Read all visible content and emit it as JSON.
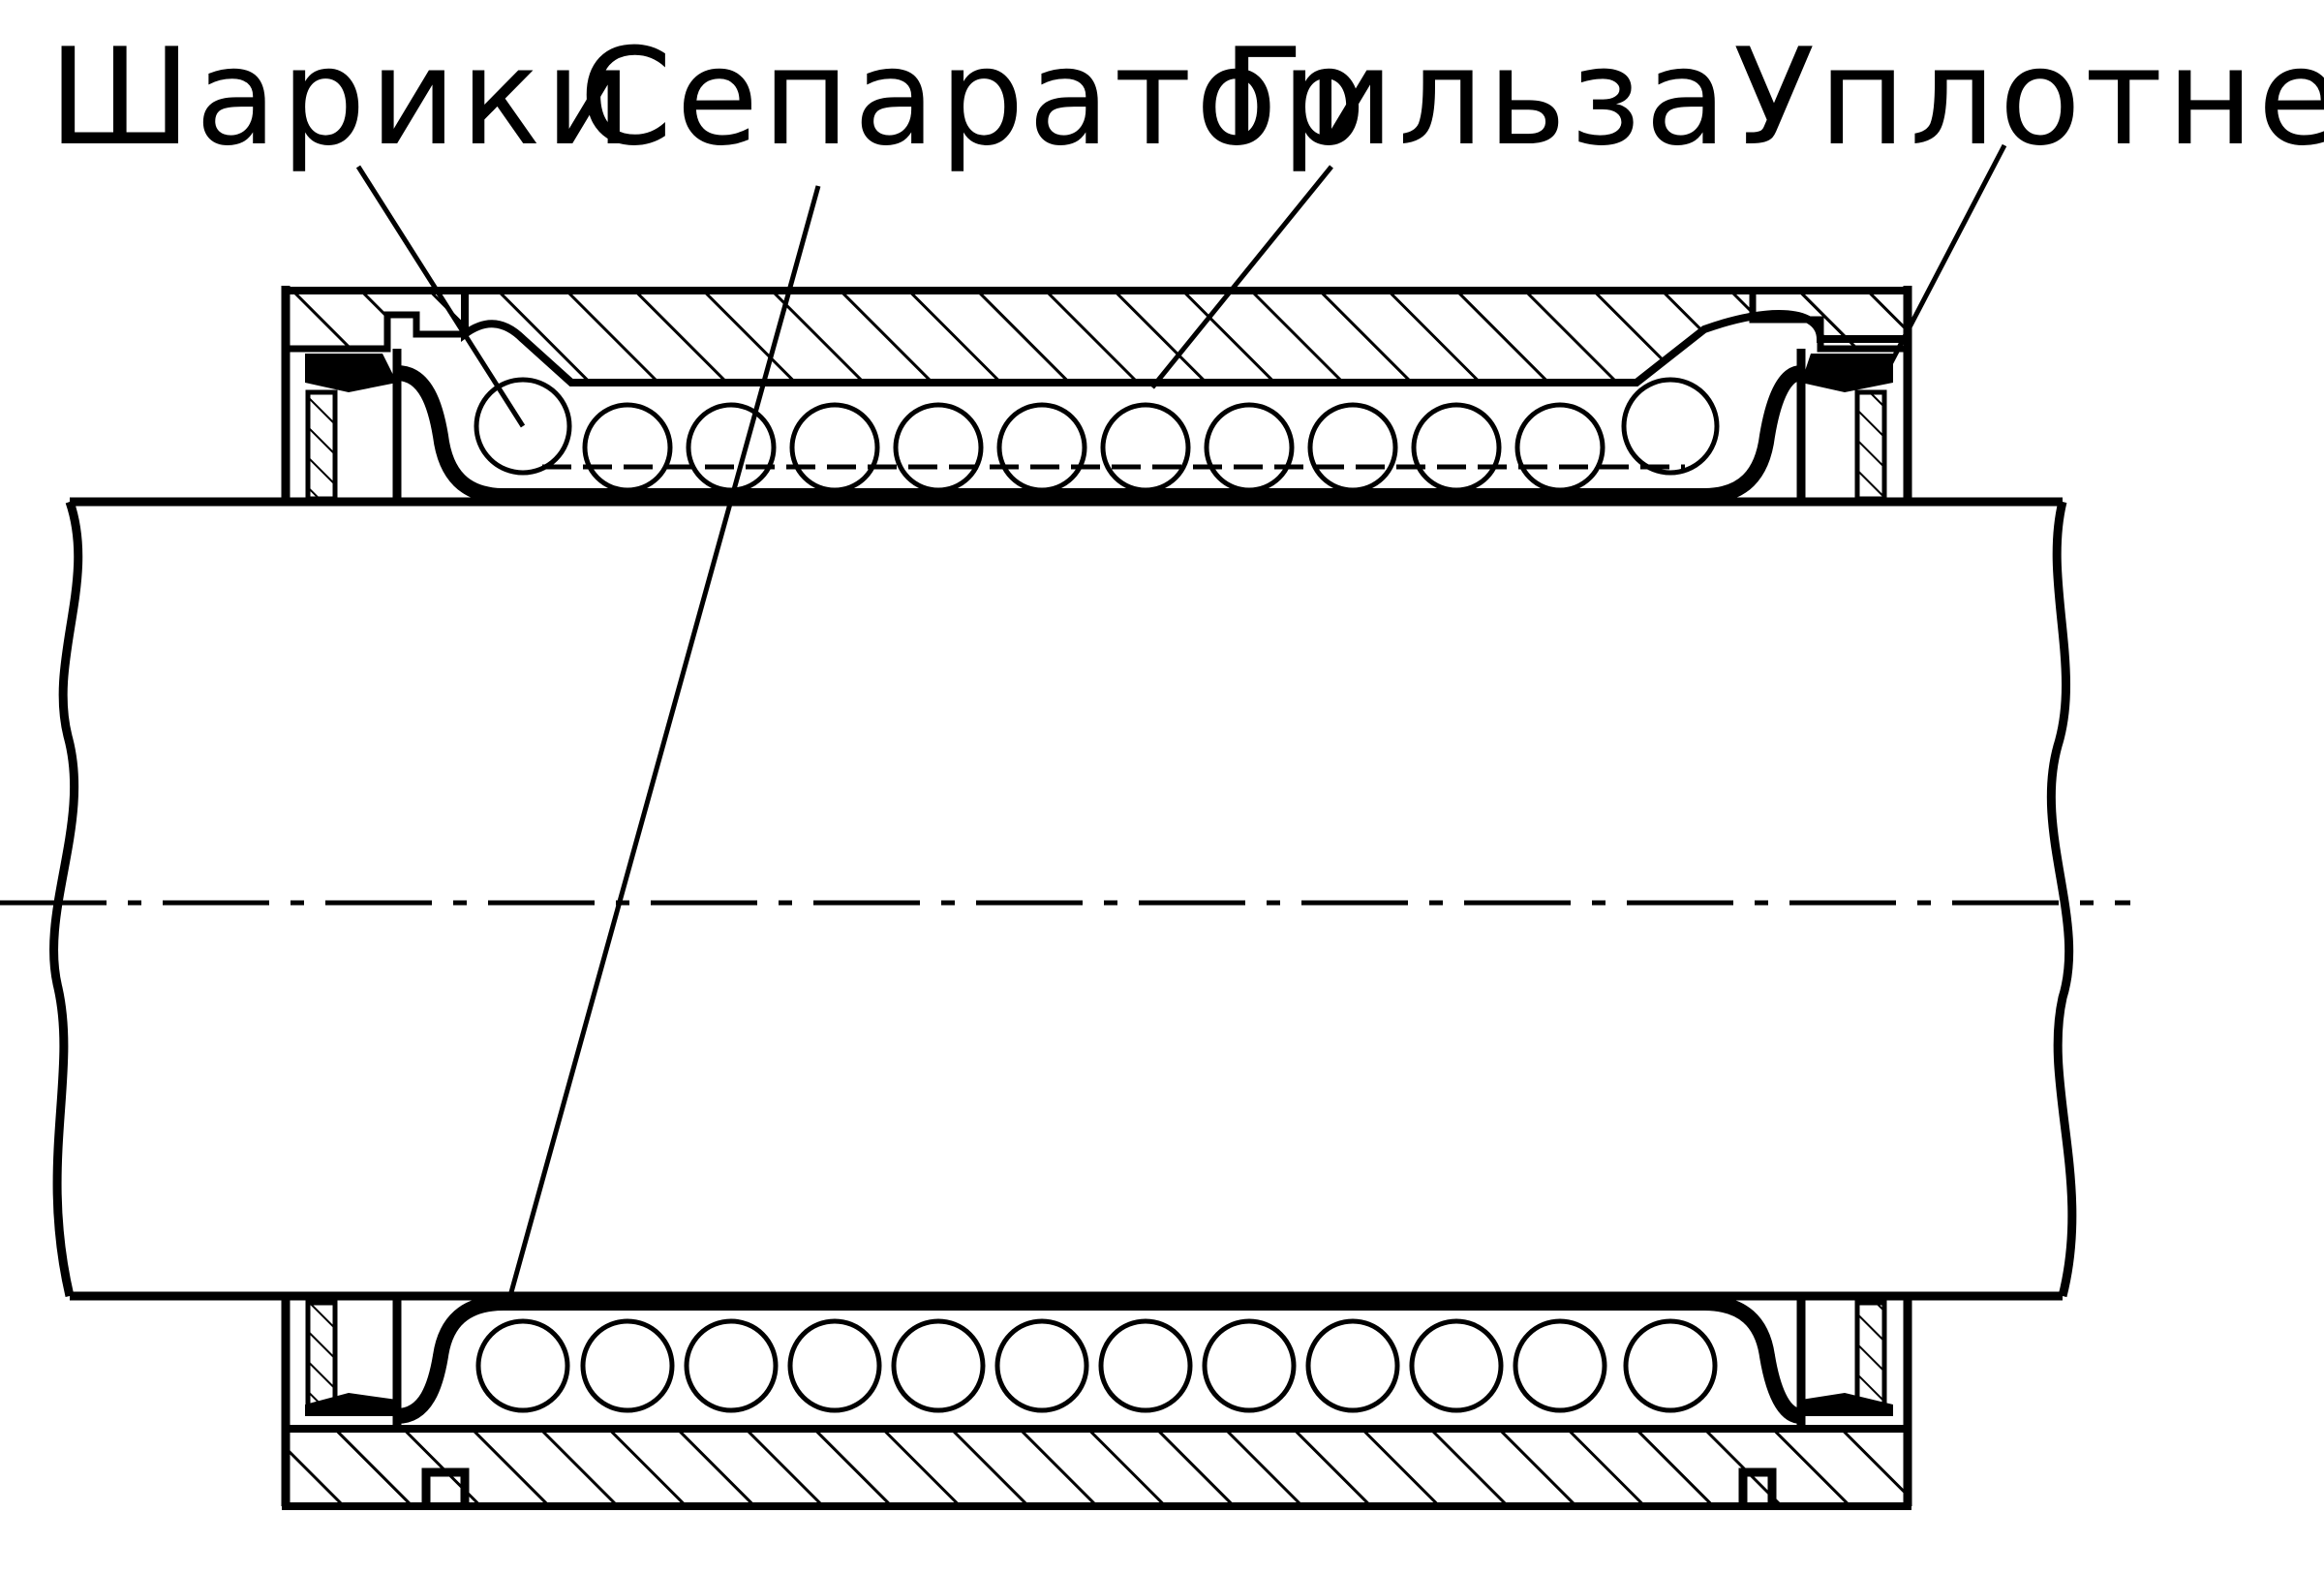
{
  "labels": {
    "balls": "Шарики",
    "cage": "Сепаратор",
    "sleeve": "Гильза",
    "seal": "Уплотнение"
  }
}
